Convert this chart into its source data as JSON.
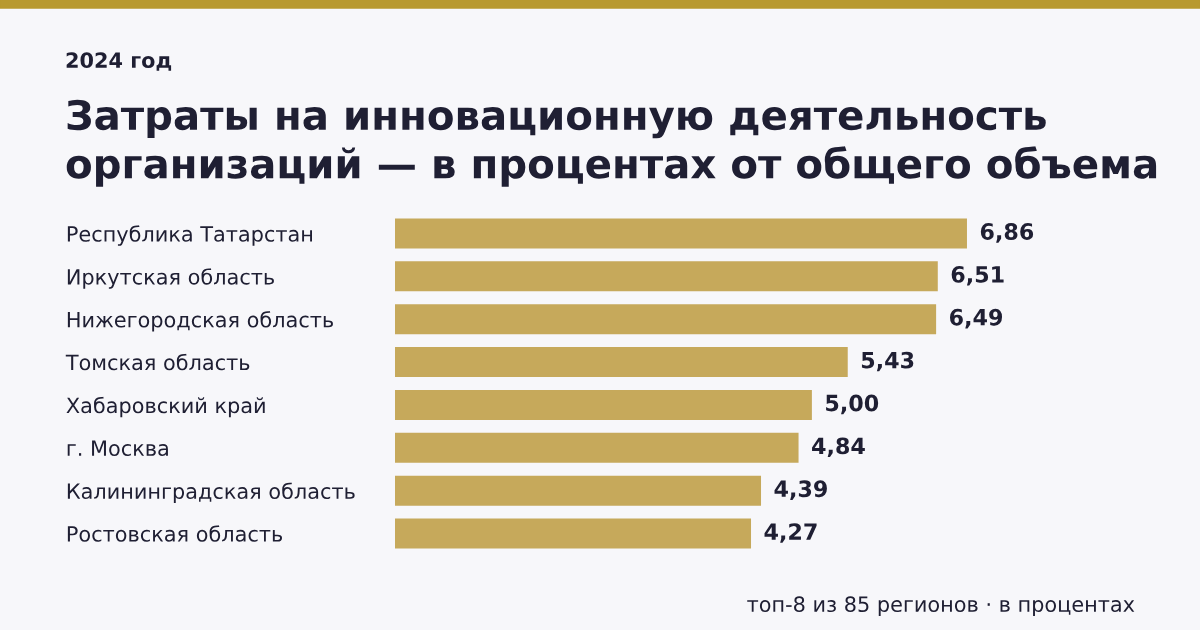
{
  "chart_data": {
    "type": "bar",
    "orientation": "horizontal",
    "title": "Затраты на инновационную деятельность\nорганизаций — в процентах от общего объема",
    "subtitle": "2024 год",
    "categories": [
      "Республика Татарстан",
      "Иркутская область",
      "Нижегородская область",
      "Томская область",
      "Хабаровский край",
      "г. Москва",
      "Калининградская область",
      "Ростовская область"
    ],
    "values": [
      6.86,
      6.51,
      6.49,
      5.43,
      5.0,
      4.84,
      4.39,
      4.27
    ],
    "value_labels": [
      "6,86",
      "6,51",
      "6,49",
      "5,43",
      "5,00",
      "4,84",
      "4,39",
      "4,27"
    ],
    "color": "#c6a95b",
    "annotations": [
      "топ-8 из 85 регионов · в процентах"
    ],
    "grid": false,
    "legend": false
  }
}
